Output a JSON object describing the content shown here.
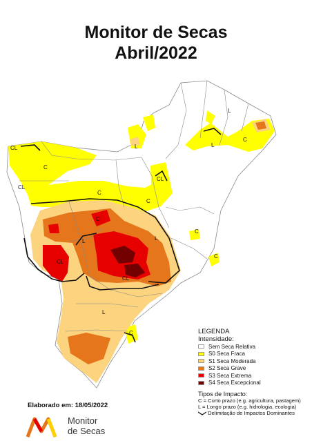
{
  "header": {
    "title_line1": "Monitor de Secas",
    "title_line2": "Abril/2022"
  },
  "legend": {
    "title": "LEGENDA",
    "subtitle": "Intensidade:",
    "items": [
      {
        "label": "Sem Seca Relativa",
        "color": "#ffffff"
      },
      {
        "label": "S0 Seca Fraca",
        "color": "#ffff00"
      },
      {
        "label": "S1 Seca Moderada",
        "color": "#fcd37f"
      },
      {
        "label": "S2 Seca Grave",
        "color": "#e5761c"
      },
      {
        "label": "S3 Seca Extrema",
        "color": "#e60000"
      },
      {
        "label": "S4 Seca Excepcional",
        "color": "#730000"
      }
    ],
    "impact_title": "Tipos de Impacto:",
    "impact_c": "C = Curto prazo (e.g. agricultura, pastagem)",
    "impact_l": "L = Longo prazo (e.g. hidrologia, ecologia)",
    "impact_line": "Delimitação de Impactos Dominantes"
  },
  "footer": {
    "elaborado": "Elaborado em: 18/05/2022",
    "logo_line1": "Monitor",
    "logo_line2": "de Secas"
  },
  "map_labels": {
    "C": "C",
    "L": "L",
    "CL": "CL"
  },
  "colors": {
    "s0": "#ffff00",
    "s1": "#fcd37f",
    "s2": "#e5761c",
    "s3": "#e60000",
    "s4": "#730000",
    "border": "#888888",
    "impact": "#111111"
  }
}
